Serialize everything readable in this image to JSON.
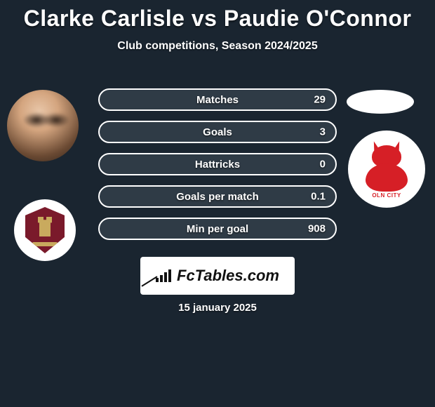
{
  "header": {
    "title": "Clarke Carlisle vs Paudie O'Connor",
    "subtitle": "Club competitions, Season 2024/2025"
  },
  "stats": {
    "row_background": "#2f3b46",
    "row_border": "#ffffff",
    "rows": [
      {
        "label": "Matches",
        "left": "",
        "right": "29"
      },
      {
        "label": "Goals",
        "left": "",
        "right": "3"
      },
      {
        "label": "Hattricks",
        "left": "",
        "right": "0"
      },
      {
        "label": "Goals per match",
        "left": "",
        "right": "0.1"
      },
      {
        "label": "Min per goal",
        "left": "",
        "right": "908"
      }
    ]
  },
  "branding": {
    "logo_text": "FcTables.com"
  },
  "date": "15 january 2025",
  "crests": {
    "left_primary": "#7a1a2b",
    "left_accent": "#c9aa5e",
    "right_primary": "#d61f26",
    "right_text": "OLN CITY"
  },
  "colors": {
    "page_bg": "#1a2530",
    "white": "#ffffff"
  }
}
